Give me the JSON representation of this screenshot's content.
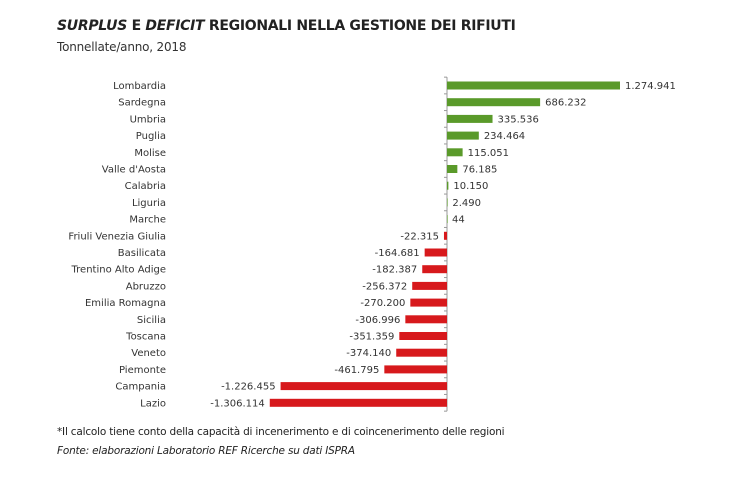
{
  "chart_data": {
    "type": "bar",
    "orientation": "horizontal",
    "title_parts": [
      "SURPLUS",
      "E",
      "DEFICIT",
      "REGIONALI NELLA GESTIONE DEI RIFIUTI"
    ],
    "subtitle": "Tonnellate/anno, 2018",
    "categories": [
      "Lombardia",
      "Sardegna",
      "Umbria",
      "Puglia",
      "Molise",
      "Valle d'Aosta",
      "Calabria",
      "Liguria",
      "Marche",
      "Friuli Venezia Giulia",
      "Basilicata",
      "Trentino Alto Adige",
      "Abruzzo",
      "Emilia Romagna",
      "Sicilia",
      "Toscana",
      "Veneto",
      "Piemonte",
      "Campania",
      "Lazio"
    ],
    "values": [
      1274941,
      686232,
      335536,
      234464,
      115051,
      76185,
      10150,
      2490,
      44,
      -22315,
      -164681,
      -182387,
      -256372,
      -270200,
      -306996,
      -351359,
      -374140,
      -461795,
      -1226455,
      -1306114
    ],
    "value_labels": [
      "1.274.941",
      "686.232",
      "335.536",
      "234.464",
      "115.051",
      "76.185",
      "10.150",
      "2.490",
      "44",
      "-22.315",
      "-164.681",
      "-182.387",
      "-256.372",
      "-270.200",
      "-306.996",
      "-351.359",
      "-374.140",
      "-461.795",
      "-1.226.455",
      "-1.306.114"
    ],
    "colors": {
      "positive": "#5a9a2a",
      "negative": "#d7191c"
    },
    "xlim": [
      -1306114,
      1274941
    ],
    "grid": false,
    "legend": "none"
  },
  "footnote": "*Il calcolo tiene conto della capacità di incenerimento e di coincenerimento delle regioni",
  "source": "Fonte: elaborazioni Laboratorio REF Ricerche su dati ISPRA"
}
